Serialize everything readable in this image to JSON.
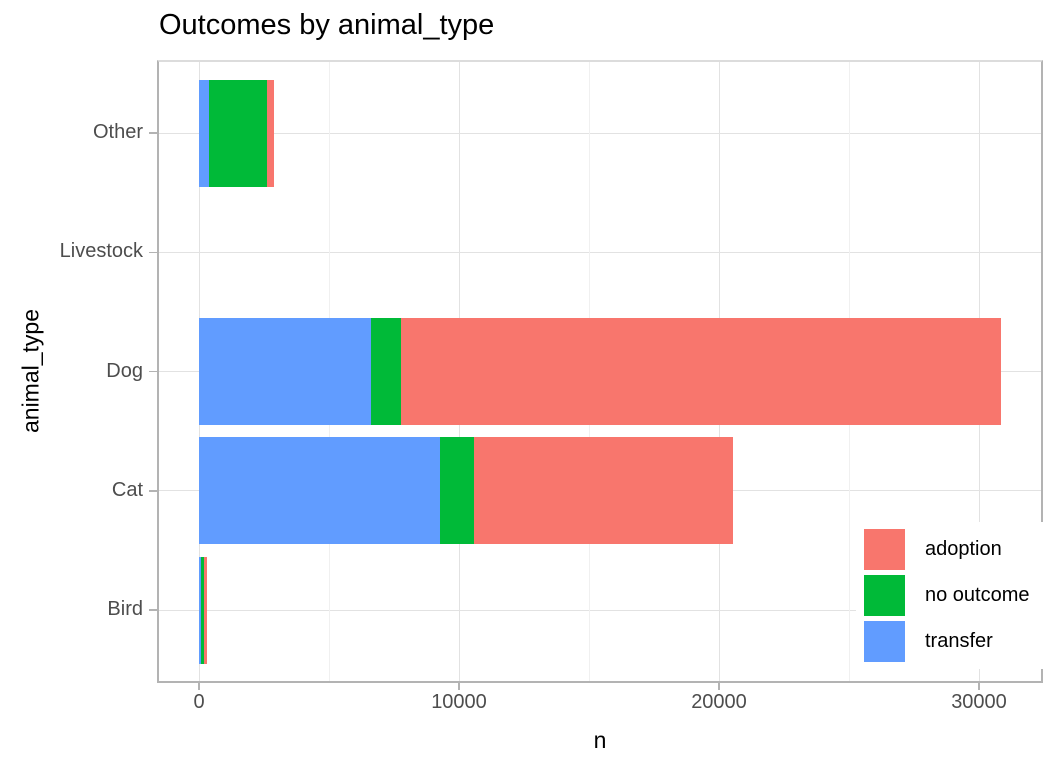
{
  "title": "Outcomes by animal_type",
  "chart_data": {
    "type": "bar",
    "orientation": "horizontal",
    "stacked": true,
    "title": "Outcomes by animal_type",
    "xlabel": "n",
    "ylabel": "animal_type",
    "categories": [
      "Other",
      "Livestock",
      "Dog",
      "Cat",
      "Bird"
    ],
    "categories_note": "listed top to bottom on the y axis",
    "series": [
      {
        "name": "transfer",
        "color": "#619CFF",
        "values": [
          385,
          0,
          6615,
          9270,
          75
        ]
      },
      {
        "name": "no outcome",
        "color": "#00BA38",
        "values": [
          2230,
          0,
          1155,
          1310,
          115
        ]
      },
      {
        "name": "adoption",
        "color": "#F8766D",
        "values": [
          270,
          0,
          23075,
          9960,
          115
        ]
      }
    ],
    "stack_order": "left to right: transfer, no outcome, adoption",
    "totals_est": {
      "Other": 2885,
      "Livestock": 0,
      "Dog": 30845,
      "Cat": 20540,
      "Bird": 305
    },
    "x_axis": {
      "tick_values": [
        0,
        10000,
        20000,
        30000
      ],
      "tick_labels": [
        "0",
        "10000",
        "20000",
        "30000"
      ],
      "minor_tick_values": [
        5000,
        15000,
        25000
      ],
      "range": [
        -1540,
        32390
      ]
    },
    "grid": "major vertical + minor vertical + major horizontal, light gray on white",
    "legend": {
      "position": "inside bottom-right",
      "entries": [
        {
          "label": "adoption",
          "color": "#F8766D"
        },
        {
          "label": "no outcome",
          "color": "#00BA38"
        },
        {
          "label": "transfer",
          "color": "#619CFF"
        }
      ]
    }
  }
}
